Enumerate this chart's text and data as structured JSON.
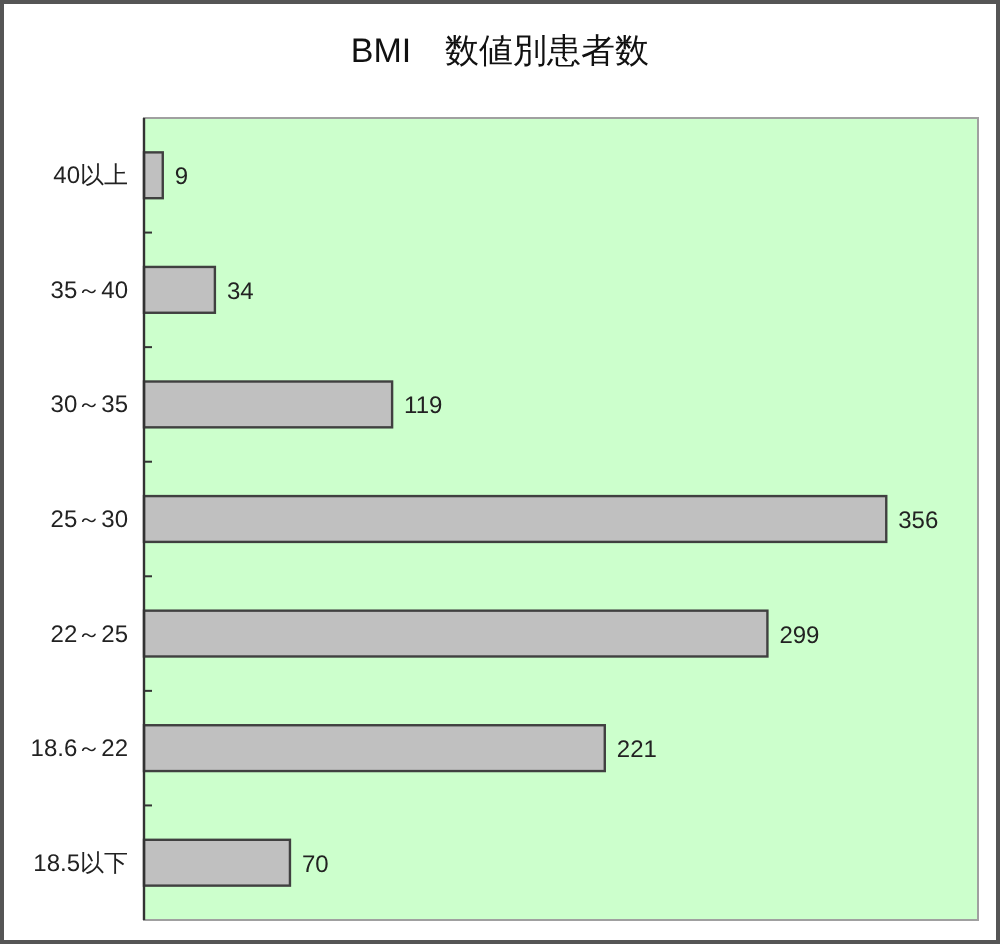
{
  "chart_data": {
    "type": "bar",
    "orientation": "horizontal",
    "title": "BMI　数値別患者数",
    "categories": [
      "40以上",
      "35～40",
      "30～35",
      "25～30",
      "22～25",
      "18.6～22",
      "18.5以下"
    ],
    "values": [
      9,
      34,
      119,
      356,
      299,
      221,
      70
    ],
    "color": "#c0c0c0",
    "data_labels": true,
    "xlim": [
      0,
      400
    ],
    "tick_labels": "y"
  }
}
